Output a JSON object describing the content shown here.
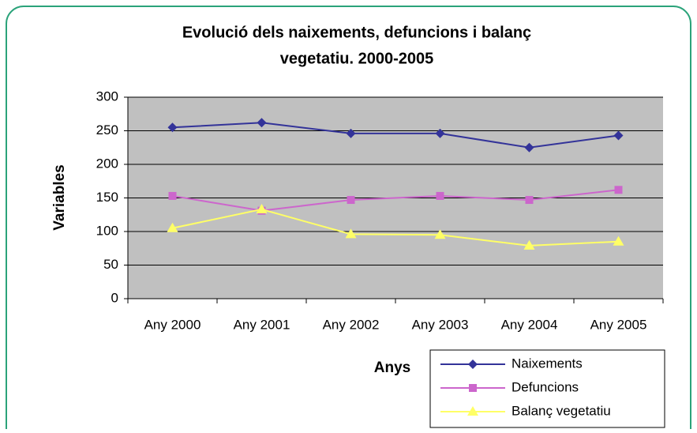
{
  "chart_data": {
    "type": "line",
    "title": "Evolució dels naixements, defuncions i balanç",
    "subtitle": "vegetatiu. 2000-2005",
    "x_label": "Anys",
    "y_label": "Variables",
    "categories": [
      "Any 2000",
      "Any 2001",
      "Any 2002",
      "Any 2003",
      "Any 2004",
      "Any 2005"
    ],
    "series": [
      {
        "name": "Naixements",
        "color": "#333399",
        "marker": "diamond",
        "values": [
          255,
          262,
          246,
          246,
          225,
          243
        ]
      },
      {
        "name": "Defuncions",
        "color": "#cc66cc",
        "marker": "square",
        "values": [
          153,
          131,
          147,
          153,
          147,
          162
        ]
      },
      {
        "name": "Balanç vegetatiu",
        "color": "#ffff66",
        "marker": "triangle",
        "values": [
          105,
          133,
          96,
          95,
          79,
          85
        ]
      }
    ],
    "ylim": [
      0,
      300
    ],
    "yticks": [
      0,
      50,
      100,
      150,
      200,
      250,
      300
    ],
    "grid": true
  }
}
